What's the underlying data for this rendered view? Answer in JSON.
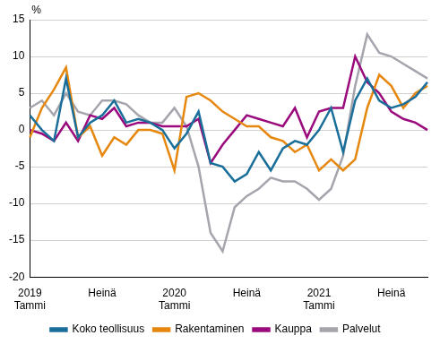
{
  "chart_data": {
    "type": "line",
    "y_label": "%",
    "categories": [
      "2019\nTammi",
      null,
      null,
      null,
      null,
      null,
      "Heinä",
      null,
      null,
      null,
      null,
      null,
      "2020\nTammi",
      null,
      null,
      null,
      null,
      null,
      "Heinä",
      null,
      null,
      null,
      null,
      null,
      "2021\nTammi",
      null,
      null,
      null,
      null,
      null,
      "Heinä",
      null,
      null,
      null
    ],
    "series": [
      {
        "name": "Koko teollisuus",
        "color": "#1a6e9a",
        "values": [
          2,
          0,
          -1.5,
          7,
          -1,
          1,
          2,
          4,
          1,
          1.5,
          1,
          0,
          -2.5,
          -0.5,
          2.5,
          -4.5,
          -5,
          -7,
          -6,
          -3,
          -5.5,
          -2.5,
          -1.5,
          -2,
          0,
          3,
          -3,
          4,
          7,
          4,
          3,
          3.5,
          4.5,
          6.5
        ]
      },
      {
        "name": "Rakentaminen",
        "color": "#e6870f",
        "values": [
          -1,
          3,
          5.5,
          8.5,
          -1,
          0.5,
          -3.5,
          -1,
          -2,
          0,
          0,
          -0.5,
          -5.5,
          4.5,
          5,
          4,
          2.5,
          1.5,
          0.5,
          0.5,
          -1,
          -1.5,
          -3,
          -2,
          -5.5,
          -4,
          -5.5,
          -4,
          3,
          7.5,
          6,
          3,
          5,
          6
        ]
      },
      {
        "name": "Kauppa",
        "color": "#9b0a7d",
        "values": [
          0,
          -0.5,
          -1.5,
          1,
          -1.5,
          2,
          1.5,
          3,
          0.5,
          1,
          1,
          0.5,
          0.5,
          0.5,
          1.5,
          -4.5,
          -2,
          0,
          2,
          1.5,
          1,
          0.5,
          3,
          -1,
          2.5,
          3,
          3,
          10,
          6.5,
          5,
          2.5,
          1.5,
          1,
          0
        ]
      },
      {
        "name": "Palvelut",
        "color": "#a5a5ad",
        "values": [
          3,
          4,
          2,
          5,
          2.5,
          2,
          4,
          4,
          3.5,
          2,
          1,
          1,
          3,
          0.5,
          -5,
          -14,
          -16.5,
          -10.5,
          -9,
          -8,
          -6.5,
          -7,
          -7,
          -8,
          -9.5,
          -8,
          -3.5,
          6,
          13,
          10.5,
          10,
          9,
          8,
          7
        ]
      }
    ],
    "ylim": [
      -20,
      15
    ],
    "yticks": [
      -20,
      -15,
      -10,
      -5,
      0,
      5,
      10,
      15
    ],
    "grid": true,
    "legend": "bottom"
  }
}
